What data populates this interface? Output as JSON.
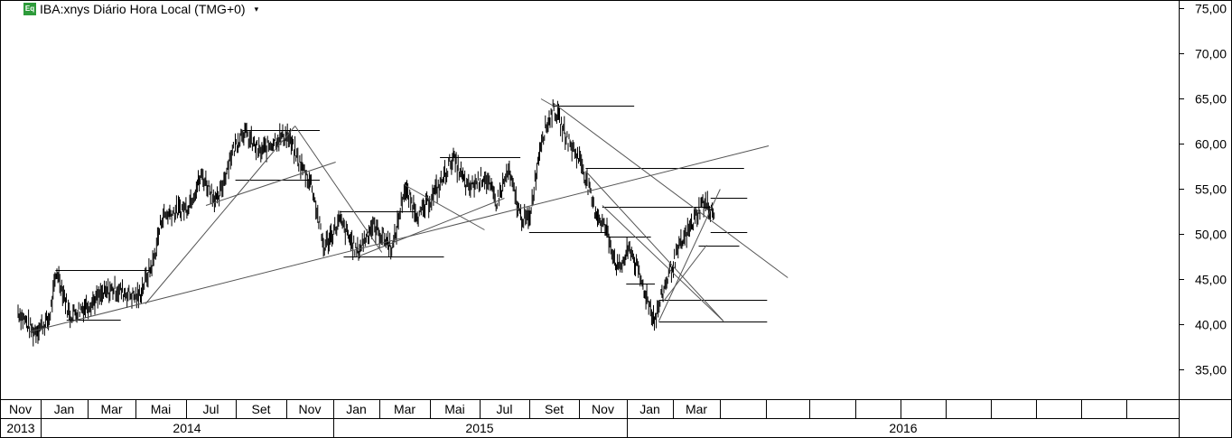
{
  "header": {
    "icon_label": "Eq",
    "title": "IBA:xnys Diário Hora Local (TMG+0)",
    "dropdown_icon": "caret-down-icon"
  },
  "chart_data": {
    "type": "candlestick",
    "ylim": [
      30,
      76
    ],
    "y_ticks": [
      "75,00",
      "70,00",
      "65,00",
      "60,00",
      "55,00",
      "50,00",
      "45,00",
      "40,00",
      "35,00"
    ],
    "x_month_labels": [
      "Nov",
      "Jan",
      "Mar",
      "Mai",
      "Jul",
      "Set",
      "Nov",
      "Jan",
      "Mar",
      "Mai",
      "Jul",
      "Set",
      "Nov",
      "Jan",
      "Mar"
    ],
    "x_year_labels": [
      "2013",
      "2014",
      "2015",
      "2016"
    ],
    "price_path": [
      [
        "2013-11-01",
        41.5
      ],
      [
        "2013-11-20",
        39.2
      ],
      [
        "2013-12-10",
        40.5
      ],
      [
        "2013-12-20",
        46.0
      ],
      [
        "2014-01-05",
        41.0
      ],
      [
        "2014-02-01",
        42.5
      ],
      [
        "2014-03-01",
        44.0
      ],
      [
        "2014-04-01",
        43.0
      ],
      [
        "2014-04-20",
        47.0
      ],
      [
        "2014-05-01",
        52.0
      ],
      [
        "2014-06-01",
        53.0
      ],
      [
        "2014-06-20",
        56.5
      ],
      [
        "2014-07-10",
        53.5
      ],
      [
        "2014-07-25",
        58.5
      ],
      [
        "2014-08-10",
        61.5
      ],
      [
        "2014-09-01",
        59.0
      ],
      [
        "2014-09-20",
        60.5
      ],
      [
        "2014-10-05",
        61.0
      ],
      [
        "2014-10-20",
        58.0
      ],
      [
        "2014-11-05",
        55.5
      ],
      [
        "2014-11-20",
        48.5
      ],
      [
        "2014-12-10",
        51.5
      ],
      [
        "2015-01-01",
        48.0
      ],
      [
        "2015-01-20",
        51.0
      ],
      [
        "2015-02-15",
        48.5
      ],
      [
        "2015-03-01",
        55.0
      ],
      [
        "2015-03-20",
        52.0
      ],
      [
        "2015-04-15",
        55.5
      ],
      [
        "2015-05-01",
        58.5
      ],
      [
        "2015-05-20",
        55.0
      ],
      [
        "2015-06-10",
        56.5
      ],
      [
        "2015-06-25",
        53.5
      ],
      [
        "2015-07-10",
        57.0
      ],
      [
        "2015-07-25",
        52.0
      ],
      [
        "2015-08-05",
        51.5
      ],
      [
        "2015-08-20",
        60.5
      ],
      [
        "2015-09-05",
        64.0
      ],
      [
        "2015-09-25",
        60.0
      ],
      [
        "2015-10-10",
        58.0
      ],
      [
        "2015-10-25",
        53.0
      ],
      [
        "2015-11-10",
        50.5
      ],
      [
        "2015-11-25",
        46.0
      ],
      [
        "2015-12-10",
        48.5
      ],
      [
        "2015-12-25",
        44.5
      ],
      [
        "2016-01-10",
        40.5
      ],
      [
        "2016-01-25",
        45.0
      ],
      [
        "2016-02-10",
        48.5
      ],
      [
        "2016-02-25",
        51.0
      ],
      [
        "2016-03-10",
        53.5
      ],
      [
        "2016-03-25",
        52.5
      ]
    ],
    "horizontal_lines": [
      {
        "x1": "2013-12-18",
        "x2": "2014-04-15",
        "y": 46.0
      },
      {
        "x1": "2014-01-01",
        "x2": "2014-03-10",
        "y": 40.5
      },
      {
        "x1": "2014-08-10",
        "x2": "2014-11-15",
        "y": 61.5
      },
      {
        "x1": "2014-08-01",
        "x2": "2014-11-15",
        "y": 56.0
      },
      {
        "x1": "2014-12-10",
        "x2": "2015-03-15",
        "y": 52.5
      },
      {
        "x1": "2014-12-15",
        "x2": "2015-04-20",
        "y": 47.5
      },
      {
        "x1": "2015-04-15",
        "x2": "2015-07-25",
        "y": 58.5
      },
      {
        "x1": "2015-08-05",
        "x2": "2015-11-10",
        "y": 50.2
      },
      {
        "x1": "2015-09-05",
        "x2": "2015-12-15",
        "y": 64.2
      },
      {
        "x1": "2015-10-15",
        "x2": "2016-05-01",
        "y": 57.3
      },
      {
        "x1": "2015-11-05",
        "x2": "2016-03-20",
        "y": 53.0
      },
      {
        "x1": "2015-11-10",
        "x2": "2016-01-05",
        "y": 49.7
      },
      {
        "x1": "2015-12-05",
        "x2": "2016-01-10",
        "y": 44.5
      },
      {
        "x1": "2016-01-15",
        "x2": "2016-05-30",
        "y": 42.7
      },
      {
        "x1": "2016-01-15",
        "x2": "2016-05-30",
        "y": 40.3
      },
      {
        "x1": "2016-03-20",
        "x2": "2016-05-05",
        "y": 54.0
      },
      {
        "x1": "2016-03-20",
        "x2": "2016-05-05",
        "y": 50.2
      },
      {
        "x1": "2016-03-05",
        "x2": "2016-04-25",
        "y": 48.7
      }
    ],
    "trend_lines": [
      {
        "x1": "2013-11-15",
        "y1": 39.2,
        "x2": "2016-06-01",
        "y2": 59.8
      },
      {
        "x1": "2014-04-10",
        "y1": 42.3,
        "x2": "2014-10-15",
        "y2": 62.0
      },
      {
        "x1": "2014-06-25",
        "y1": 53.2,
        "x2": "2014-12-05",
        "y2": 58.0
      },
      {
        "x1": "2014-10-15",
        "y1": 62.0,
        "x2": "2015-02-01",
        "y2": 48.0
      },
      {
        "x1": "2015-01-01",
        "y1": 47.5,
        "x2": "2015-07-05",
        "y2": 54.0
      },
      {
        "x1": "2015-03-01",
        "y1": 55.5,
        "x2": "2015-06-10",
        "y2": 50.5
      },
      {
        "x1": "2015-09-05",
        "y1": 64.5,
        "x2": "2016-06-25",
        "y2": 45.2
      },
      {
        "x1": "2015-10-15",
        "y1": 57.0,
        "x2": "2016-04-05",
        "y2": 40.4
      },
      {
        "x1": "2015-11-05",
        "y1": 53.2,
        "x2": "2016-04-05",
        "y2": 40.4
      },
      {
        "x1": "2016-01-15",
        "y1": 40.4,
        "x2": "2016-04-01",
        "y2": 55.0
      },
      {
        "x1": "2016-01-20",
        "y1": 42.5,
        "x2": "2016-03-15",
        "y2": 48.8
      },
      {
        "x1": "2015-08-20",
        "y1": 65.0,
        "x2": "2015-09-05",
        "y2": 64.2
      }
    ]
  }
}
